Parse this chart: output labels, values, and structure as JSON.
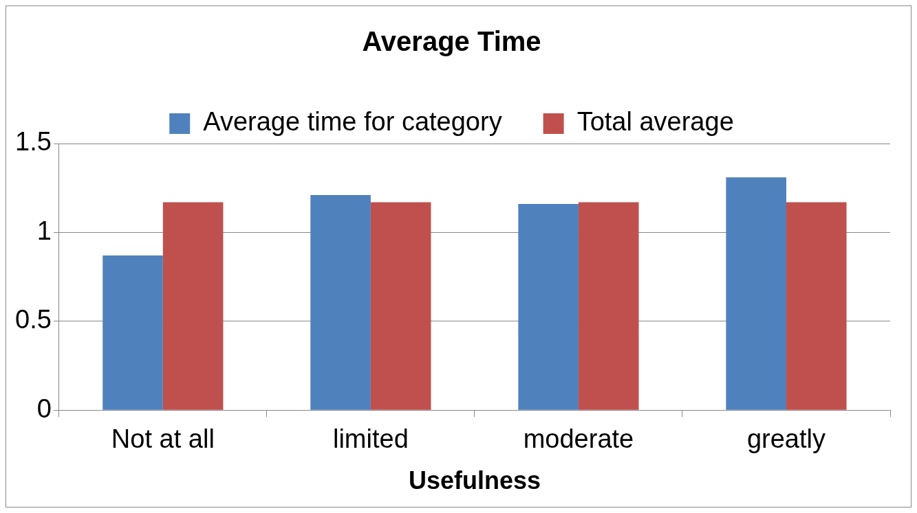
{
  "chart_data": {
    "type": "bar",
    "title": "Average Time",
    "xlabel": "Usefulness",
    "categories": [
      "Not at all",
      "limited",
      "moderate",
      "greatly"
    ],
    "series": [
      {
        "name": "Average time for category",
        "color": "#4f81bd",
        "values": [
          0.87,
          1.21,
          1.16,
          1.31
        ]
      },
      {
        "name": "Total average",
        "color": "#c0504d",
        "values": [
          1.17,
          1.17,
          1.17,
          1.17
        ]
      }
    ],
    "ylim": [
      0,
      1.5
    ],
    "yticks": [
      0,
      0.5,
      1,
      1.5
    ],
    "grid": "y",
    "legend": "top"
  }
}
